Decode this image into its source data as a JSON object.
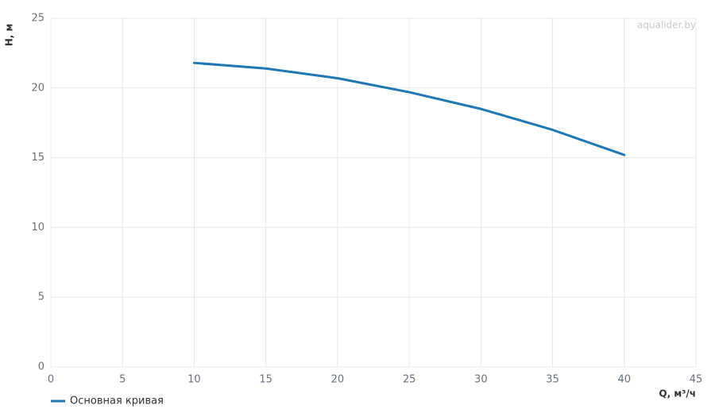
{
  "chart_data": {
    "type": "line",
    "watermark": "aqualider.by",
    "x_label": "Q, м³/ч",
    "y_label": "H, м",
    "x": [
      10,
      15,
      20,
      25,
      30,
      35,
      40
    ],
    "series": [
      {
        "name": "Основная кривая",
        "color": "#1f77b4",
        "values": [
          21.8,
          21.4,
          20.7,
          19.7,
          18.5,
          17.0,
          15.2
        ]
      }
    ],
    "xlim": [
      0,
      45
    ],
    "xticks": [
      0,
      5,
      10,
      15,
      20,
      25,
      30,
      35,
      40,
      45
    ],
    "ylim": [
      0,
      25
    ],
    "yticks": [
      0,
      5,
      10,
      15,
      20,
      25
    ],
    "grid": true,
    "legend": "bottom-left"
  }
}
